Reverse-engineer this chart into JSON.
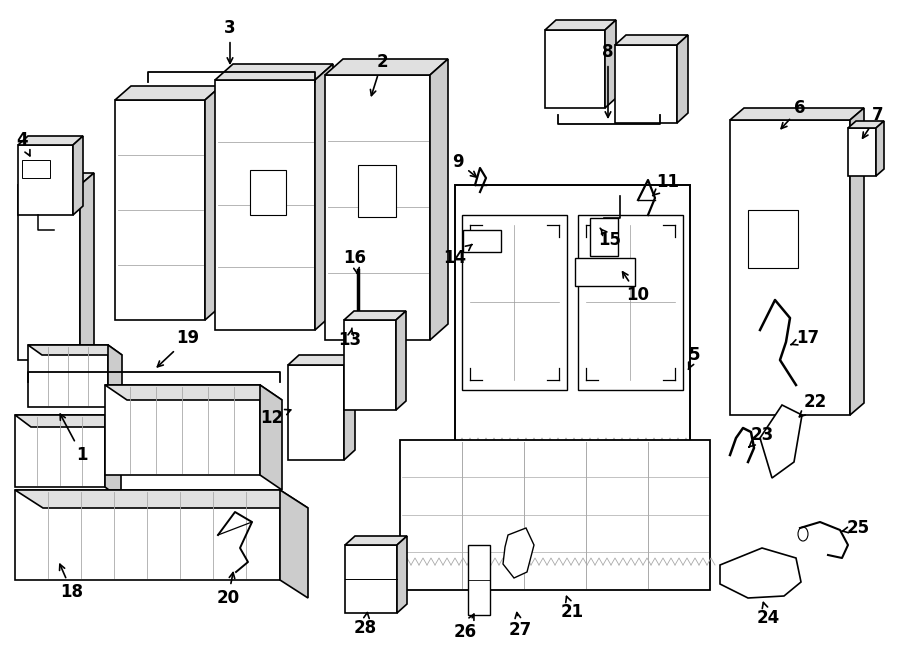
{
  "background_color": "#ffffff",
  "line_color": "#000000",
  "text_color": "#000000"
}
